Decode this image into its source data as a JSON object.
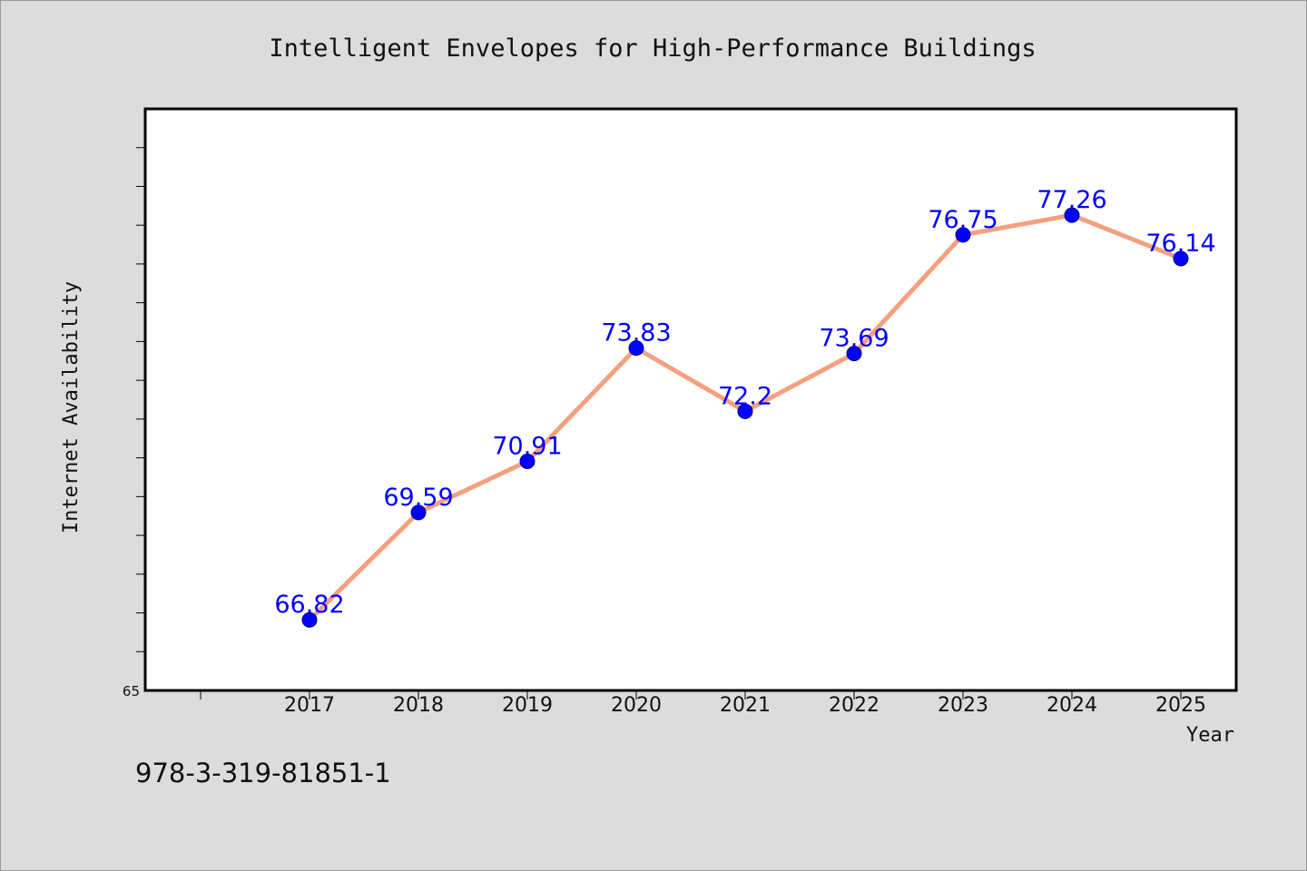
{
  "chart_data": {
    "type": "line",
    "title": "Intelligent Envelopes for High-Performance Buildings",
    "xlabel": "Year",
    "ylabel": "Internet Availability",
    "categories": [
      "2017",
      "2018",
      "2019",
      "2020",
      "2021",
      "2022",
      "2023",
      "2024",
      "2025"
    ],
    "series": [
      {
        "values": [
          66.82,
          69.59,
          70.91,
          73.83,
          72.2,
          73.69,
          76.75,
          77.26,
          76.14
        ],
        "labels": [
          "66.82",
          "69.59",
          "70.91",
          "73.83",
          "72.2",
          "73.69",
          "76.75",
          "77.26",
          "76.14"
        ],
        "line_color": "#f4a07f",
        "marker_color": "#0000ff"
      }
    ],
    "ylim": [
      65,
      80
    ],
    "y_tick_labels": [
      "65"
    ],
    "grid": false,
    "legend": "none"
  },
  "footer": {
    "isbn": "978-3-319-81851-1"
  }
}
